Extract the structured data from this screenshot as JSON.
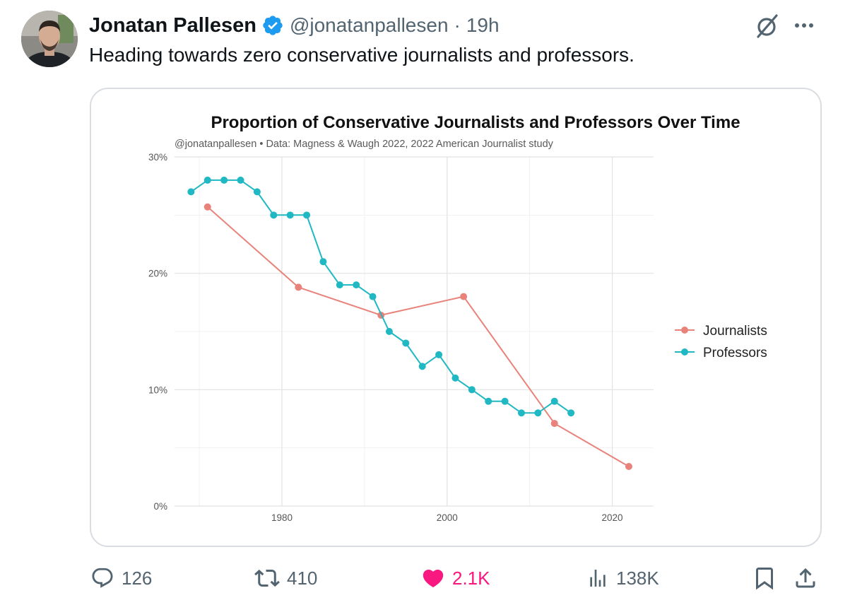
{
  "post": {
    "author_name": "Jonatan Pallesen",
    "handle": "@jonatanpallesen",
    "separator": "·",
    "time": "19h",
    "text": "Heading towards zero conservative journalists and professors."
  },
  "stats": {
    "replies": "126",
    "reposts": "410",
    "likes": "2.1K",
    "views": "138K"
  },
  "colors": {
    "verified": "#1d9bf0",
    "like_active": "#f91880",
    "journalists": "#e8827a",
    "professors": "#1fb8c3",
    "icon_gray": "#536471"
  },
  "icons": {
    "reply": "speech-bubble-icon",
    "repost": "repost-arrows-icon",
    "like": "heart-filled-icon",
    "views": "bar-chart-icon",
    "bookmark": "bookmark-icon",
    "share": "share-upload-icon",
    "grok": "grok-slash-circle-icon",
    "more": "ellipsis-icon"
  },
  "chart_data": {
    "type": "line",
    "title": "Proportion of Conservative Journalists and Professors Over Time",
    "subtitle": "@jonatanpallesen • Data: Magness & Waugh 2022, 2022 American Journalist study",
    "xlabel": "",
    "ylabel": "",
    "xlim": [
      1967,
      2025
    ],
    "ylim": [
      0,
      30
    ],
    "x_ticks": [
      1980,
      2000,
      2020
    ],
    "y_ticks": [
      0,
      10,
      20,
      30
    ],
    "y_tick_labels": [
      "0%",
      "10%",
      "20%",
      "30%"
    ],
    "grid": true,
    "legend_position": "right",
    "series": [
      {
        "name": "Journalists",
        "color": "#e8827a",
        "x": [
          1971,
          1982,
          1992,
          2002,
          2013,
          2022
        ],
        "y": [
          25.7,
          18.8,
          16.4,
          18.0,
          7.1,
          3.4
        ]
      },
      {
        "name": "Professors",
        "color": "#1fb8c3",
        "x": [
          1969,
          1971,
          1973,
          1975,
          1977,
          1979,
          1981,
          1983,
          1985,
          1987,
          1989,
          1991,
          1993,
          1995,
          1997,
          1999,
          2001,
          2003,
          2005,
          2007,
          2009,
          2011,
          2013,
          2015
        ],
        "y": [
          27,
          28,
          28,
          28,
          27,
          25,
          25,
          25,
          21,
          19,
          19,
          18,
          15,
          14,
          12,
          13,
          11,
          10,
          9,
          9,
          8,
          8,
          9,
          8
        ]
      }
    ]
  }
}
